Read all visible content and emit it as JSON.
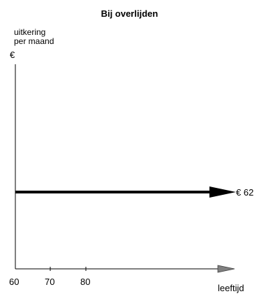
{
  "chart_data": {
    "type": "line",
    "title": "Bij overlijden",
    "ylabel_lines": [
      "uitkering",
      "per maand"
    ],
    "y_unit": "€",
    "xlabel": "leeftijd",
    "x_ticks": [
      "60",
      "70",
      "80"
    ],
    "x_start": 60,
    "series": [
      {
        "label": "€ 62",
        "value": 62,
        "start": 60
      }
    ],
    "colors": {
      "series": "#000000",
      "axis_arrow": "#808080"
    }
  }
}
